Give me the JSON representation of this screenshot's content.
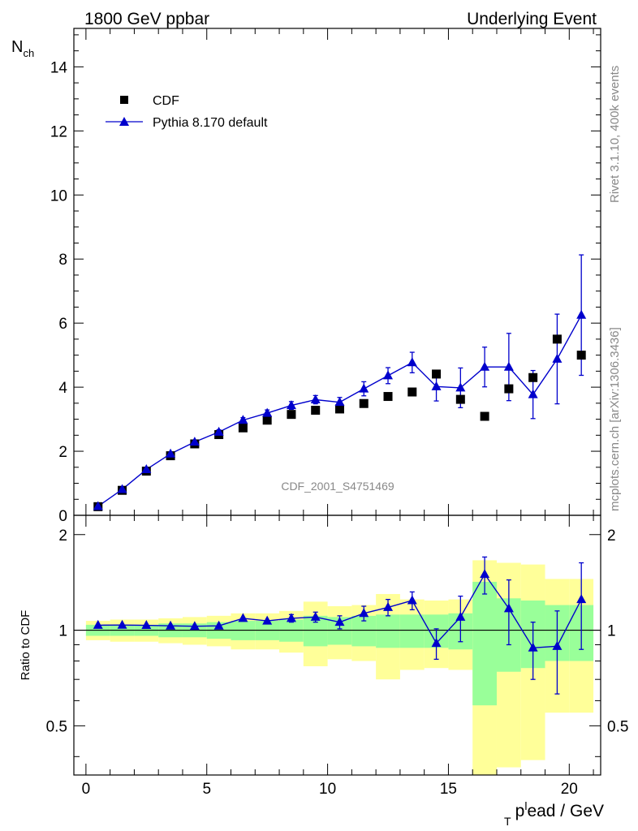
{
  "header": {
    "left_title": "1800 GeV ppbar",
    "right_title": "Underlying Event"
  },
  "side_labels": {
    "rivet": "Rivet 3.1.10,  400k events",
    "mcplots": "mcplots.cern.ch [arXiv:1306.3436]"
  },
  "colors": {
    "mc": "#0000cc",
    "data": "#000000",
    "band_1sigma": "#99ff99",
    "band_2sigma": "#ffff99"
  },
  "chart_data": [
    {
      "type": "scatter",
      "panel": "main",
      "analysis_label": "CDF_2001_S4751469",
      "ylabel_main": "N",
      "ylabel_sub": "ch",
      "xlim": [
        -0.5,
        21.3
      ],
      "ylim": [
        0,
        15.2
      ],
      "yticks": [
        0,
        2,
        4,
        6,
        8,
        10,
        12,
        14
      ],
      "legend_position": "top-left",
      "series": [
        {
          "name": "CDF",
          "marker": "square",
          "x": [
            0.5,
            1.5,
            2.5,
            3.5,
            4.5,
            5.5,
            6.5,
            7.5,
            8.5,
            9.5,
            10.5,
            11.5,
            12.5,
            13.5,
            14.5,
            15.5,
            16.5,
            17.5,
            18.5,
            19.5,
            20.5
          ],
          "y": [
            0.27,
            0.78,
            1.38,
            1.86,
            2.23,
            2.52,
            2.73,
            2.97,
            3.15,
            3.28,
            3.32,
            3.49,
            3.71,
            3.85,
            4.41,
            3.62,
            3.09,
            3.95,
            4.3,
            5.5,
            5.0
          ]
        },
        {
          "name": "Pythia 8.170 default",
          "marker": "triangle",
          "x": [
            0.5,
            1.5,
            2.5,
            3.5,
            4.5,
            5.5,
            6.5,
            7.5,
            8.5,
            9.5,
            10.5,
            11.5,
            12.5,
            13.5,
            14.5,
            15.5,
            16.5,
            17.5,
            18.5,
            19.5,
            20.5
          ],
          "y": [
            0.28,
            0.81,
            1.43,
            1.92,
            2.29,
            2.6,
            2.97,
            3.19,
            3.43,
            3.61,
            3.53,
            3.95,
            4.36,
            4.77,
            4.02,
            3.98,
            4.63,
            4.63,
            3.77,
            4.88,
            6.25
          ],
          "yerr": [
            0.01,
            0.02,
            0.04,
            0.05,
            0.06,
            0.07,
            0.08,
            0.1,
            0.12,
            0.13,
            0.15,
            0.22,
            0.25,
            0.32,
            0.45,
            0.62,
            0.62,
            1.05,
            0.75,
            1.4,
            1.88
          ]
        }
      ]
    },
    {
      "type": "scatter",
      "panel": "ratio",
      "ylabel": "Ratio to CDF",
      "xlabel_prefix": "p",
      "xlabel_sub": "T",
      "xlabel_sup": "l",
      "xlabel_suffix": "ead / GeV",
      "xlim": [
        -0.5,
        21.3
      ],
      "ylim": [
        0.35,
        2.3
      ],
      "yticks": [
        0.5,
        1,
        2
      ],
      "xticks": [
        0,
        5,
        10,
        15,
        20
      ],
      "reference_line": 1,
      "band_edges": [
        0,
        1,
        2,
        3,
        4,
        5,
        6,
        7,
        8,
        9,
        10,
        11,
        12,
        13,
        14,
        15,
        16,
        17,
        18,
        19,
        20,
        21
      ],
      "band_1sigma_low": [
        0.96,
        0.96,
        0.96,
        0.95,
        0.95,
        0.94,
        0.93,
        0.93,
        0.92,
        0.89,
        0.9,
        0.89,
        0.88,
        0.88,
        0.88,
        0.87,
        0.58,
        0.74,
        0.76,
        0.8,
        0.8
      ],
      "band_1sigma_high": [
        1.04,
        1.04,
        1.04,
        1.05,
        1.05,
        1.06,
        1.07,
        1.07,
        1.08,
        1.11,
        1.1,
        1.11,
        1.12,
        1.12,
        1.12,
        1.13,
        1.42,
        1.26,
        1.24,
        1.2,
        1.2
      ],
      "band_2sigma_low": [
        0.93,
        0.92,
        0.92,
        0.91,
        0.9,
        0.89,
        0.87,
        0.87,
        0.85,
        0.77,
        0.81,
        0.8,
        0.7,
        0.75,
        0.76,
        0.75,
        0.34,
        0.37,
        0.39,
        0.55,
        0.55
      ],
      "band_2sigma_high": [
        1.07,
        1.08,
        1.08,
        1.09,
        1.1,
        1.11,
        1.13,
        1.13,
        1.15,
        1.23,
        1.19,
        1.2,
        1.3,
        1.25,
        1.24,
        1.25,
        1.66,
        1.63,
        1.61,
        1.45,
        1.45
      ],
      "series": [
        {
          "name": "Pythia 8.170 default",
          "x": [
            0.5,
            1.5,
            2.5,
            3.5,
            4.5,
            5.5,
            6.5,
            7.5,
            8.5,
            9.5,
            10.5,
            11.5,
            12.5,
            13.5,
            14.5,
            15.5,
            16.5,
            17.5,
            18.5,
            19.5,
            20.5
          ],
          "y": [
            1.037,
            1.038,
            1.036,
            1.032,
            1.029,
            1.032,
            1.09,
            1.07,
            1.09,
            1.1,
            1.06,
            1.13,
            1.18,
            1.24,
            0.91,
            1.1,
            1.5,
            1.17,
            0.88,
            0.89,
            1.25
          ],
          "yerr": [
            0.01,
            0.01,
            0.01,
            0.02,
            0.02,
            0.02,
            0.02,
            0.02,
            0.03,
            0.04,
            0.05,
            0.06,
            0.07,
            0.08,
            0.1,
            0.18,
            0.2,
            0.27,
            0.18,
            0.26,
            0.38
          ]
        }
      ]
    }
  ]
}
